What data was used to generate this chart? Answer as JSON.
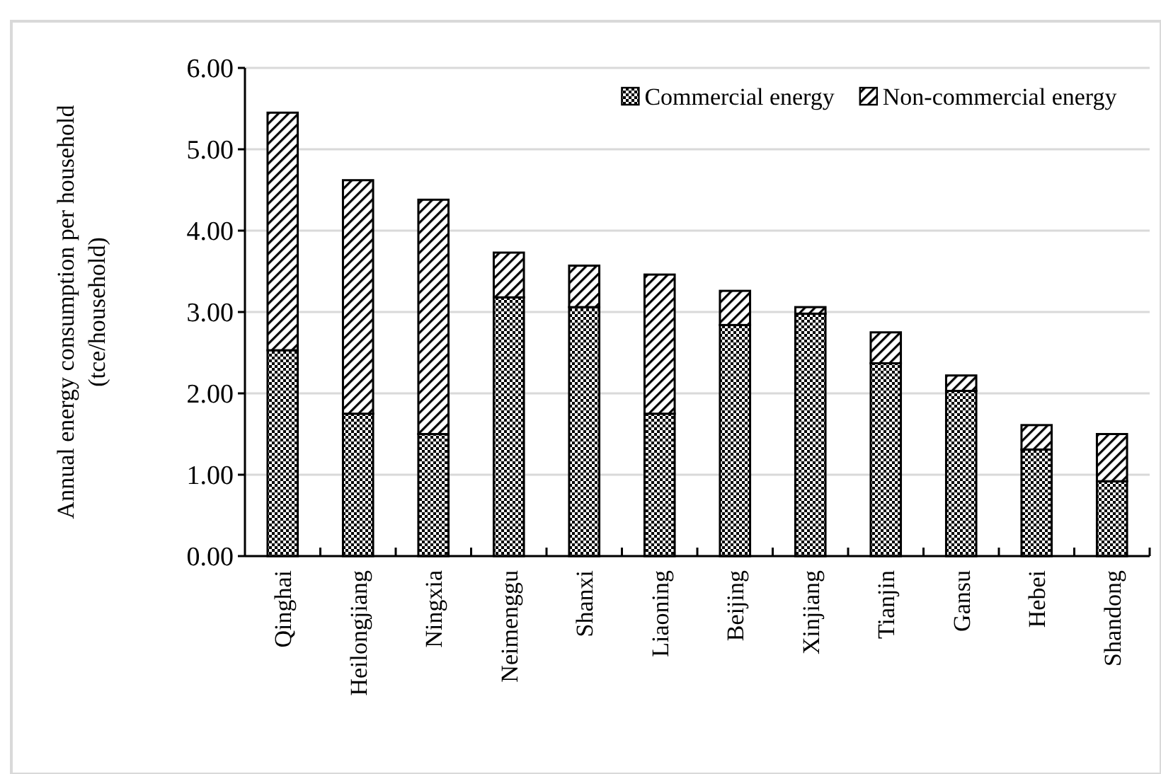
{
  "chart_data": {
    "type": "bar",
    "stacked": true,
    "ylabel": "Annual energy consumption per household\n(tce/household)",
    "categories": [
      "Qinghai",
      "Heilongjiang",
      "Ningxia",
      "Neimenggu",
      "Shanxi",
      "Liaoning",
      "Beijing",
      "Xinjiang",
      "Tianjin",
      "Gansu",
      "Hebei",
      "Shandong"
    ],
    "series": [
      {
        "name": "Commercial energy",
        "color": "#000000",
        "values": [
          2.53,
          1.75,
          1.5,
          3.18,
          3.06,
          1.75,
          2.84,
          2.98,
          2.37,
          2.03,
          1.31,
          0.92
        ]
      },
      {
        "name": "Non-commercial energy",
        "color": "#000000",
        "values": [
          2.92,
          2.87,
          2.88,
          0.55,
          0.51,
          1.71,
          0.42,
          0.08,
          0.38,
          0.19,
          0.3,
          0.58
        ]
      }
    ],
    "ylim": [
      0,
      6
    ],
    "yticks": [
      {
        "value": 0,
        "label": "0.00"
      },
      {
        "value": 1,
        "label": "1.00"
      },
      {
        "value": 2,
        "label": "2.00"
      },
      {
        "value": 3,
        "label": "3.00"
      },
      {
        "value": 4,
        "label": "4.00"
      },
      {
        "value": 5,
        "label": "5.00"
      },
      {
        "value": 6,
        "label": "6.00"
      }
    ],
    "grid": "y",
    "legend": "top right"
  }
}
